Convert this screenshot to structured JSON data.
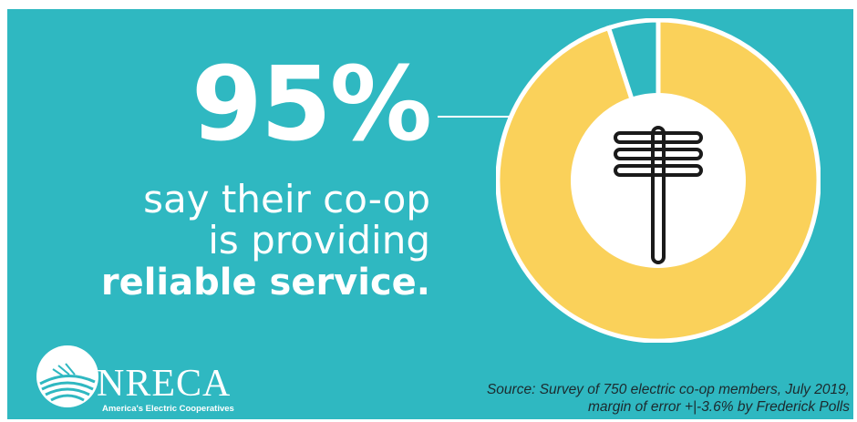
{
  "headline": {
    "percent": "95%",
    "line1": "say their co-op",
    "line2": "is providing",
    "line3": "reliable service."
  },
  "chart_data": {
    "type": "pie",
    "variant": "donut",
    "slices": [
      {
        "value": 95,
        "color": "#fad15a"
      },
      {
        "value": 5,
        "color": "#2fb8c1"
      }
    ],
    "center_icon": "utility-pole-icon"
  },
  "logo": {
    "name": "NRECA",
    "tagline": "America's Electric Cooperatives"
  },
  "source": {
    "line1": "Source: Survey of 750 electric co-op members, July 2019,",
    "line2": "margin of error +|-3.6% by Frederick Polls"
  },
  "colors": {
    "background": "#2fb8c1",
    "accent": "#fad15a",
    "text": "#ffffff"
  }
}
